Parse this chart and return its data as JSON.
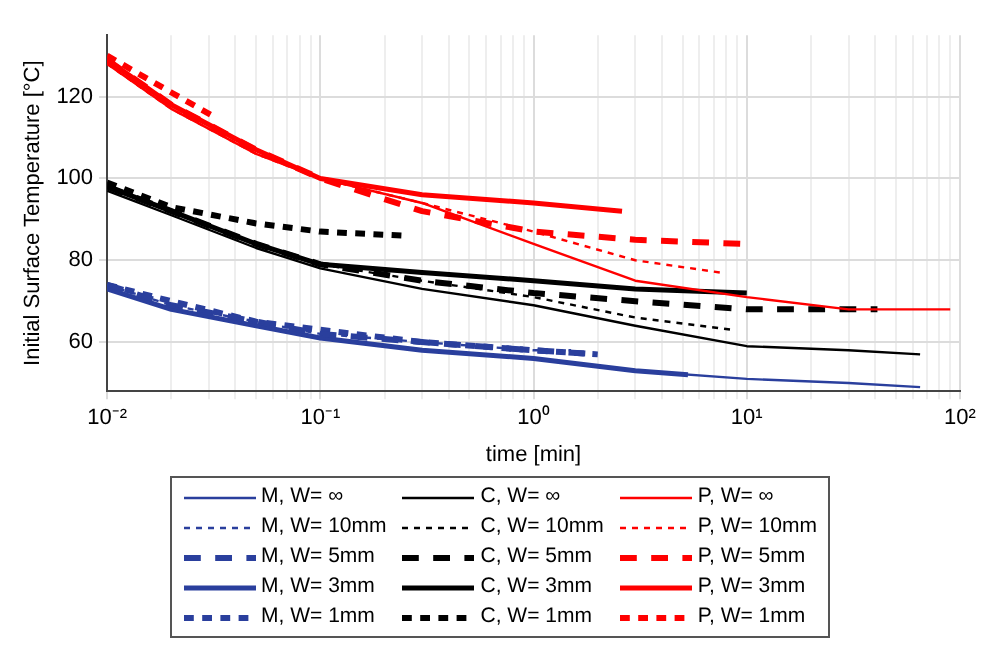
{
  "chart_data": {
    "type": "line",
    "xlabel": "time [min]",
    "ylabel": "Initial Surface Temperature [°C]",
    "log": "x",
    "grid": true,
    "legend": "bottom",
    "marker": "none",
    "xlim": [
      0.01,
      100
    ],
    "ylim": [
      48,
      135
    ],
    "yticks": [
      60,
      80,
      100,
      120
    ],
    "xticks": [
      {
        "value": 0.01,
        "label": "10⁻²"
      },
      {
        "value": 0.02,
        "label": null
      },
      {
        "value": 0.03,
        "label": null
      },
      {
        "value": 0.04,
        "label": null
      },
      {
        "value": 0.05,
        "label": null
      },
      {
        "value": 0.06,
        "label": null
      },
      {
        "value": 0.07,
        "label": null
      },
      {
        "value": 0.08,
        "label": null
      },
      {
        "value": 0.09,
        "label": null
      },
      {
        "value": 0.1,
        "label": "10⁻¹"
      },
      {
        "value": 0.2,
        "label": null
      },
      {
        "value": 0.3,
        "label": null
      },
      {
        "value": 0.4,
        "label": null
      },
      {
        "value": 0.5,
        "label": null
      },
      {
        "value": 0.6,
        "label": null
      },
      {
        "value": 0.7,
        "label": null
      },
      {
        "value": 0.8,
        "label": null
      },
      {
        "value": 0.9,
        "label": null
      },
      {
        "value": 1,
        "label": "10⁰"
      },
      {
        "value": 2,
        "label": null
      },
      {
        "value": 3,
        "label": null
      },
      {
        "value": 4,
        "label": null
      },
      {
        "value": 5,
        "label": null
      },
      {
        "value": 6,
        "label": null
      },
      {
        "value": 7,
        "label": null
      },
      {
        "value": 8,
        "label": null
      },
      {
        "value": 9,
        "label": null
      },
      {
        "value": 10,
        "label": "10¹"
      },
      {
        "value": 20,
        "label": null
      },
      {
        "value": 30,
        "label": null
      },
      {
        "value": 40,
        "label": null
      },
      {
        "value": 50,
        "label": null
      },
      {
        "value": 60,
        "label": null
      },
      {
        "value": 70,
        "label": null
      },
      {
        "value": 80,
        "label": null
      },
      {
        "value": 90,
        "label": null
      },
      {
        "value": 100,
        "label": "10²"
      }
    ],
    "series": [
      {
        "name": "M, W= ∞",
        "color": "#2a3f9d",
        "line_style": "solid",
        "x": [
          0.01,
          0.02,
          0.05,
          0.1,
          0.3,
          1,
          3,
          10,
          30,
          65
        ],
        "values": [
          73,
          68,
          64,
          61,
          58,
          56,
          53,
          51,
          50,
          49
        ]
      },
      {
        "name": "C, W= ∞",
        "color": "#000000",
        "line_style": "solid",
        "x": [
          0.01,
          0.02,
          0.05,
          0.1,
          0.3,
          1,
          3,
          10,
          30,
          65
        ],
        "values": [
          97,
          91,
          83,
          78,
          73,
          69,
          64,
          59,
          58,
          57
        ]
      },
      {
        "name": "P, W= ∞",
        "color": "#ff0000",
        "line_style": "solid",
        "x": [
          0.01,
          0.02,
          0.05,
          0.1,
          0.3,
          1,
          3,
          10,
          30,
          90
        ],
        "values": [
          128,
          117,
          106,
          100,
          94,
          84,
          75,
          71,
          68,
          68
        ]
      },
      {
        "name": "M, W= 10mm",
        "color": "#2a3f9d",
        "line_style": "dotted",
        "x": [
          0.01,
          0.02,
          0.05,
          0.1,
          0.3,
          1,
          1.5
        ],
        "values": [
          74,
          69,
          65,
          62,
          60,
          58,
          58
        ]
      },
      {
        "name": "C, W= 10mm",
        "color": "#000000",
        "line_style": "dotted",
        "x": [
          0.01,
          0.02,
          0.05,
          0.1,
          0.3,
          1,
          3,
          8.6
        ],
        "values": [
          98,
          92,
          84,
          79,
          75,
          71,
          66,
          63
        ]
      },
      {
        "name": "P, W= 10mm",
        "color": "#ff0000",
        "line_style": "dotted",
        "x": [
          0.01,
          0.02,
          0.05,
          0.1,
          0.3,
          1,
          3,
          7.5
        ],
        "values": [
          128,
          117,
          106,
          100,
          94,
          87,
          80,
          77
        ]
      },
      {
        "name": "M, W= 5mm",
        "color": "#2a3f9d",
        "line_style": "dashed",
        "x": [
          0.01,
          0.02,
          0.05,
          0.1,
          0.3,
          1,
          2
        ],
        "values": [
          74,
          69,
          65,
          62,
          60,
          58,
          57
        ]
      },
      {
        "name": "C, W= 5mm",
        "color": "#000000",
        "line_style": "dashed",
        "x": [
          0.01,
          0.02,
          0.05,
          0.1,
          0.3,
          1,
          3,
          10,
          41
        ],
        "values": [
          98,
          92,
          84,
          79,
          75,
          72,
          70,
          68,
          68
        ]
      },
      {
        "name": "P, W= 5mm",
        "color": "#ff0000",
        "line_style": "dashed",
        "x": [
          0.01,
          0.02,
          0.05,
          0.1,
          0.3,
          1,
          3,
          9.6
        ],
        "values": [
          129,
          118,
          107,
          100,
          92,
          87,
          85,
          84
        ]
      },
      {
        "name": "M, W= 3mm",
        "color": "#2a3f9d",
        "line_style": "solid",
        "x": [
          0.01,
          0.02,
          0.05,
          0.1,
          0.3,
          1,
          3,
          5.3
        ],
        "values": [
          73,
          68,
          64,
          61,
          58,
          56,
          53,
          52
        ]
      },
      {
        "name": "C, W= 3mm",
        "color": "#000000",
        "line_style": "solid",
        "x": [
          0.01,
          0.02,
          0.05,
          0.1,
          0.3,
          1,
          3,
          10
        ],
        "values": [
          98,
          92,
          84,
          79,
          77,
          75,
          73,
          72
        ]
      },
      {
        "name": "P, W= 3mm",
        "color": "#ff0000",
        "line_style": "solid",
        "x": [
          0.01,
          0.02,
          0.05,
          0.1,
          0.3,
          1,
          2.6
        ],
        "values": [
          129,
          118,
          107,
          100,
          96,
          94,
          92
        ]
      },
      {
        "name": "M, W= 1mm",
        "color": "#2a3f9d",
        "line_style": "dashed",
        "x": [
          0.01,
          0.02,
          0.05,
          0.1,
          0.3,
          1,
          2
        ],
        "values": [
          74,
          70,
          65,
          63,
          60,
          58,
          57
        ]
      },
      {
        "name": "C, W= 1mm",
        "color": "#000000",
        "line_style": "dashed",
        "x": [
          0.01,
          0.02,
          0.05,
          0.1,
          0.25
        ],
        "values": [
          99,
          93,
          89,
          87,
          86
        ]
      },
      {
        "name": "P, W= 1mm",
        "color": "#ff0000",
        "line_style": "dashed",
        "x": [
          0.01,
          0.02,
          0.032
        ],
        "values": [
          130,
          121,
          115
        ]
      }
    ]
  }
}
